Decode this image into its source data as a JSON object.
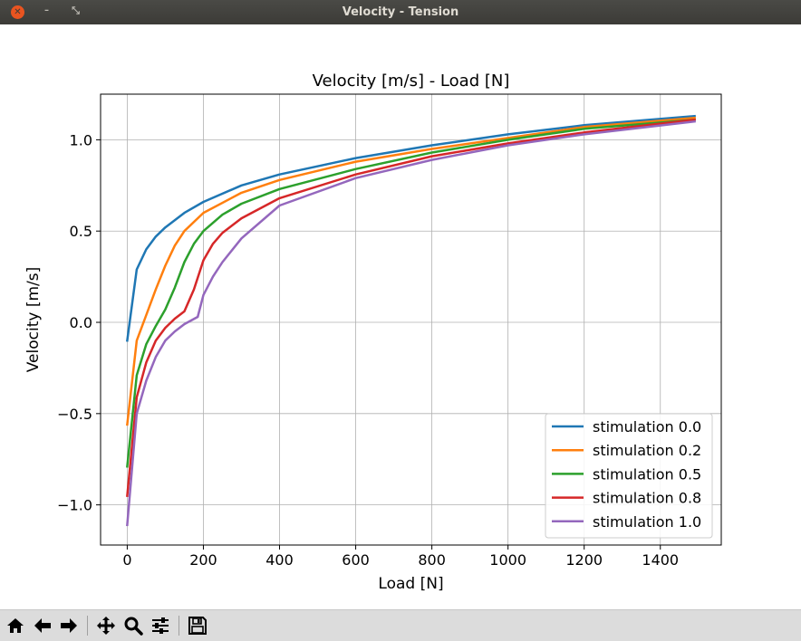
{
  "window": {
    "title": "Velocity - Tension"
  },
  "toolbar": {
    "buttons": [
      {
        "name": "home",
        "icon": "home-icon"
      },
      {
        "name": "back",
        "icon": "arrow-left-icon"
      },
      {
        "name": "forward",
        "icon": "arrow-right-icon"
      },
      {
        "name": "pan",
        "icon": "move-icon"
      },
      {
        "name": "zoom",
        "icon": "zoom-icon"
      },
      {
        "name": "configure",
        "icon": "sliders-icon"
      },
      {
        "name": "save",
        "icon": "save-icon"
      }
    ]
  },
  "chart_data": {
    "type": "line",
    "title": "Velocity [m/s] - Load [N]",
    "xlabel": "Load [N]",
    "ylabel": "Velocity [m/s]",
    "xlim": [
      -70,
      1560
    ],
    "ylim": [
      -1.22,
      1.25
    ],
    "xticks": [
      "0",
      "200",
      "400",
      "600",
      "800",
      "1000",
      "1200",
      "1400"
    ],
    "xtick_values": [
      0,
      200,
      400,
      600,
      800,
      1000,
      1200,
      1400
    ],
    "yticks": [
      "1.0",
      "0.5",
      "0.0",
      "−0.5",
      "−1.0"
    ],
    "ytick_values": [
      1.0,
      0.5,
      0.0,
      -0.5,
      -1.0
    ],
    "grid": true,
    "legend_position": "lower-right",
    "series": [
      {
        "name": "stimulation 0.0",
        "color": "#1f77b4",
        "x": [
          0,
          25,
          50,
          75,
          100,
          150,
          200,
          300,
          400,
          600,
          800,
          1000,
          1200,
          1490
        ],
        "y": [
          -0.1,
          0.29,
          0.4,
          0.47,
          0.52,
          0.6,
          0.66,
          0.75,
          0.81,
          0.9,
          0.97,
          1.03,
          1.08,
          1.13
        ]
      },
      {
        "name": "stimulation 0.2",
        "color": "#ff7f0e",
        "x": [
          0,
          25,
          50,
          75,
          100,
          125,
          150,
          200,
          300,
          400,
          600,
          800,
          1000,
          1200,
          1490
        ],
        "y": [
          -0.56,
          -0.1,
          0.04,
          0.18,
          0.31,
          0.42,
          0.5,
          0.6,
          0.71,
          0.78,
          0.88,
          0.95,
          1.01,
          1.07,
          1.12
        ]
      },
      {
        "name": "stimulation 0.5",
        "color": "#2ca02c",
        "x": [
          0,
          25,
          50,
          75,
          100,
          125,
          150,
          175,
          200,
          250,
          300,
          400,
          600,
          800,
          1000,
          1200,
          1490
        ],
        "y": [
          -0.79,
          -0.29,
          -0.12,
          -0.02,
          0.07,
          0.19,
          0.33,
          0.43,
          0.5,
          0.59,
          0.65,
          0.73,
          0.84,
          0.93,
          1.0,
          1.06,
          1.11
        ]
      },
      {
        "name": "stimulation 0.8",
        "color": "#d62728",
        "x": [
          0,
          25,
          50,
          75,
          100,
          125,
          150,
          175,
          200,
          225,
          250,
          300,
          400,
          600,
          800,
          1000,
          1200,
          1490
        ],
        "y": [
          -0.95,
          -0.41,
          -0.22,
          -0.1,
          -0.03,
          0.02,
          0.06,
          0.18,
          0.34,
          0.43,
          0.49,
          0.57,
          0.68,
          0.81,
          0.91,
          0.98,
          1.04,
          1.11
        ]
      },
      {
        "name": "stimulation 1.0",
        "color": "#9467bd",
        "x": [
          0,
          25,
          50,
          75,
          100,
          125,
          150,
          185,
          200,
          225,
          250,
          300,
          400,
          600,
          800,
          1000,
          1200,
          1490
        ],
        "y": [
          -1.11,
          -0.5,
          -0.32,
          -0.19,
          -0.1,
          -0.05,
          -0.01,
          0.03,
          0.15,
          0.25,
          0.33,
          0.46,
          0.64,
          0.79,
          0.89,
          0.97,
          1.03,
          1.1
        ]
      }
    ]
  }
}
